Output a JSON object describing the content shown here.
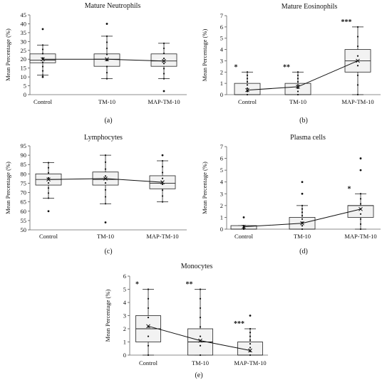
{
  "chart_data": [
    {
      "type": "box",
      "title": "Mature Neutrophils",
      "panel_label": "(a)",
      "ylabel": "Mean Percentage (%)",
      "ylim": [
        0,
        45
      ],
      "ystep": 5,
      "categories": [
        "Control",
        "TM-10",
        "MAP-TM-10"
      ],
      "boxes": [
        {
          "q1": 18,
          "median": 19.5,
          "q3": 23,
          "lower_whisker": 11,
          "upper_whisker": 28,
          "mean": 20,
          "outliers": [
            37,
            10
          ]
        },
        {
          "q1": 16,
          "median": 20,
          "q3": 23,
          "lower_whisker": 9,
          "upper_whisker": 33,
          "mean": 20,
          "outliers": [
            40
          ]
        },
        {
          "q1": 16,
          "median": 19,
          "q3": 23,
          "lower_whisker": 9,
          "upper_whisker": 29,
          "mean": 19,
          "outliers": [
            2
          ]
        }
      ],
      "significance": [
        "",
        "",
        ""
      ]
    },
    {
      "type": "box",
      "title": "Mature Eosinophils",
      "panel_label": "(b)",
      "ylabel": "Mean Percentage (%)",
      "ylim": [
        0,
        7
      ],
      "ystep": 1,
      "categories": [
        "Control",
        "TM-10",
        "MAP-TM-10"
      ],
      "boxes": [
        {
          "q1": 0,
          "median": 0,
          "q3": 1,
          "lower_whisker": 0,
          "upper_whisker": 2,
          "mean": 0.4,
          "outliers": []
        },
        {
          "q1": 0,
          "median": 0,
          "q3": 1,
          "lower_whisker": 0,
          "upper_whisker": 2,
          "mean": 0.7,
          "outliers": []
        },
        {
          "q1": 2,
          "median": 3,
          "q3": 4,
          "lower_whisker": 0,
          "upper_whisker": 6,
          "mean": 3,
          "outliers": []
        }
      ],
      "significance": [
        "*",
        "**",
        "***"
      ]
    },
    {
      "type": "box",
      "title": "Lymphocytes",
      "panel_label": "(c)",
      "ylabel": "Mean Percentage (%)",
      "ylim": [
        50,
        95
      ],
      "ystep": 5,
      "categories": [
        "Control",
        "TM-10",
        "MAP-TM-10"
      ],
      "boxes": [
        {
          "q1": 74,
          "median": 77,
          "q3": 80,
          "lower_whisker": 67,
          "upper_whisker": 86,
          "mean": 77,
          "outliers": [
            60
          ]
        },
        {
          "q1": 74,
          "median": 77,
          "q3": 81,
          "lower_whisker": 64,
          "upper_whisker": 90,
          "mean": 77.5,
          "outliers": [
            54
          ]
        },
        {
          "q1": 72,
          "median": 75,
          "q3": 79,
          "lower_whisker": 65,
          "upper_whisker": 87,
          "mean": 75.5,
          "outliers": [
            90
          ]
        }
      ],
      "significance": [
        "",
        "",
        ""
      ]
    },
    {
      "type": "box",
      "title": "Plasma cells",
      "panel_label": "(d)",
      "ylabel": "Mean Percentage (%)",
      "ylim": [
        0,
        7
      ],
      "ystep": 1,
      "categories": [
        "Control",
        "TM-10",
        "MAP-TM-10"
      ],
      "boxes": [
        {
          "q1": 0,
          "median": 0,
          "q3": 0.3,
          "lower_whisker": 0,
          "upper_whisker": 0.3,
          "mean": 0.2,
          "outliers": [
            1
          ]
        },
        {
          "q1": 0,
          "median": 0,
          "q3": 1,
          "lower_whisker": 0,
          "upper_whisker": 2,
          "mean": 0.5,
          "outliers": [
            3,
            4
          ]
        },
        {
          "q1": 1,
          "median": 2,
          "q3": 2,
          "lower_whisker": 0,
          "upper_whisker": 3,
          "mean": 1.7,
          "outliers": [
            5,
            6
          ]
        }
      ],
      "significance": [
        "",
        "",
        "*"
      ]
    },
    {
      "type": "box",
      "title": "Monocytes",
      "panel_label": "(e)",
      "ylabel": "Mean Percentage (%)",
      "ylim": [
        0,
        6
      ],
      "ystep": 1,
      "categories": [
        "Control",
        "TM-10",
        "MAP-TM-10"
      ],
      "boxes": [
        {
          "q1": 1,
          "median": 2,
          "q3": 3,
          "lower_whisker": 0,
          "upper_whisker": 5,
          "mean": 2.2,
          "outliers": []
        },
        {
          "q1": 0,
          "median": 1,
          "q3": 2,
          "lower_whisker": 0,
          "upper_whisker": 5,
          "mean": 1.1,
          "outliers": []
        },
        {
          "q1": 0,
          "median": 0,
          "q3": 1,
          "lower_whisker": 0,
          "upper_whisker": 2,
          "mean": 0.35,
          "outliers": [
            3
          ]
        }
      ],
      "significance": [
        "*",
        "**",
        "***"
      ]
    }
  ]
}
